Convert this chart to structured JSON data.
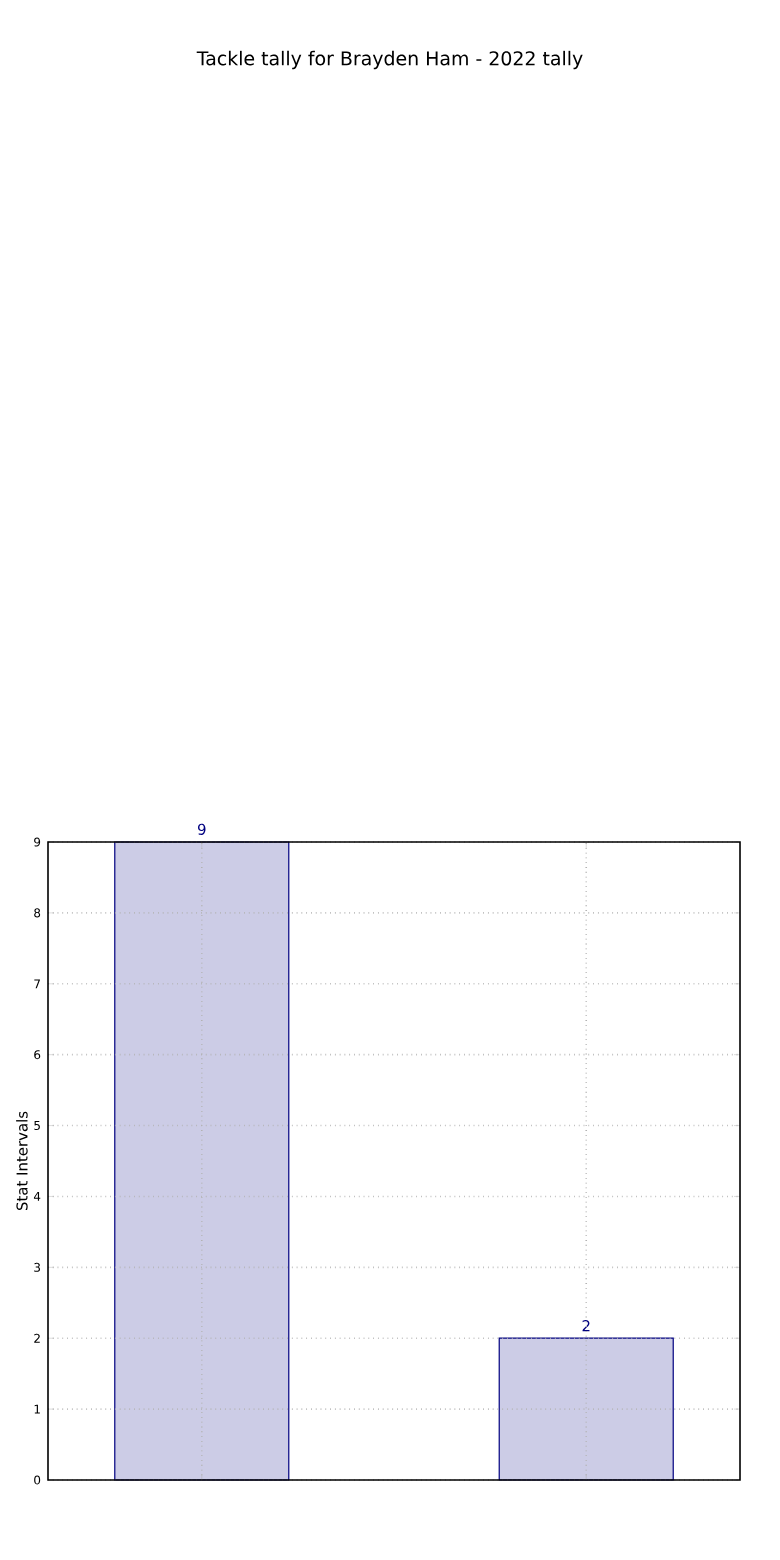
{
  "chart_data": {
    "type": "bar",
    "title": "Tackle tally for Brayden Ham - 2022 tally",
    "ylabel": "Stat Intervals",
    "categories": [
      null,
      null
    ],
    "values": [
      9,
      2
    ],
    "color": "#cccce6",
    "ylim": [
      0,
      9
    ],
    "yticks": [
      0,
      1,
      2,
      3,
      4,
      5,
      6,
      7,
      8,
      9
    ],
    "grid": true,
    "data_labels": true
  }
}
